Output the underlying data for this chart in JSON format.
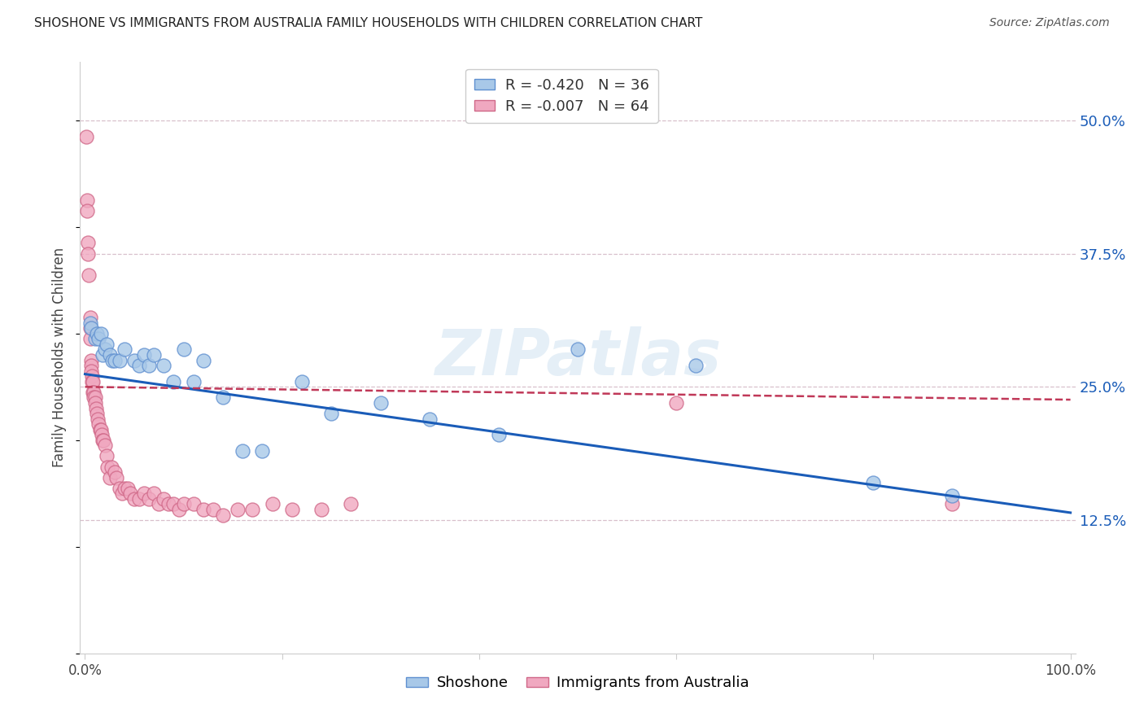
{
  "title": "SHOSHONE VS IMMIGRANTS FROM AUSTRALIA FAMILY HOUSEHOLDS WITH CHILDREN CORRELATION CHART",
  "source": "Source: ZipAtlas.com",
  "ylabel": "Family Households with Children",
  "xlim_min": -0.005,
  "xlim_max": 1.005,
  "ylim_min": 0.0,
  "ylim_max": 0.555,
  "yticks": [
    0.125,
    0.25,
    0.375,
    0.5
  ],
  "ytick_labels": [
    "12.5%",
    "25.0%",
    "37.5%",
    "50.0%"
  ],
  "xticks": [
    0.0,
    0.2,
    0.4,
    0.6,
    0.8,
    1.0
  ],
  "xtick_labels": [
    "0.0%",
    "",
    "",
    "",
    "",
    "100.0%"
  ],
  "legend_r1": "R = -0.420",
  "legend_n1": "N = 36",
  "legend_r2": "R = -0.007",
  "legend_n2": "N = 64",
  "shoshone_color": "#a8c8e8",
  "australia_color": "#f0a8c0",
  "shoshone_edge_color": "#6090d0",
  "australia_edge_color": "#d06888",
  "shoshone_line_color": "#1a5cb8",
  "australia_line_color": "#c03858",
  "background_color": "#ffffff",
  "grid_color": "#d8c0cc",
  "watermark": "ZIPatlas",
  "shoshone_x": [
    0.005,
    0.006,
    0.01,
    0.012,
    0.014,
    0.016,
    0.018,
    0.02,
    0.022,
    0.025,
    0.028,
    0.03,
    0.035,
    0.04,
    0.05,
    0.055,
    0.06,
    0.065,
    0.07,
    0.08,
    0.09,
    0.1,
    0.11,
    0.12,
    0.14,
    0.16,
    0.18,
    0.22,
    0.25,
    0.3,
    0.35,
    0.42,
    0.5,
    0.62,
    0.8,
    0.88
  ],
  "shoshone_y": [
    0.31,
    0.305,
    0.295,
    0.3,
    0.295,
    0.3,
    0.28,
    0.285,
    0.29,
    0.28,
    0.275,
    0.275,
    0.275,
    0.285,
    0.275,
    0.27,
    0.28,
    0.27,
    0.28,
    0.27,
    0.255,
    0.285,
    0.255,
    0.275,
    0.24,
    0.19,
    0.19,
    0.255,
    0.225,
    0.235,
    0.22,
    0.205,
    0.285,
    0.27,
    0.16,
    0.148
  ],
  "australia_x": [
    0.001,
    0.002,
    0.002,
    0.003,
    0.003,
    0.004,
    0.005,
    0.005,
    0.005,
    0.006,
    0.006,
    0.006,
    0.007,
    0.007,
    0.008,
    0.008,
    0.009,
    0.009,
    0.01,
    0.01,
    0.011,
    0.012,
    0.013,
    0.014,
    0.015,
    0.016,
    0.017,
    0.018,
    0.019,
    0.02,
    0.022,
    0.023,
    0.025,
    0.027,
    0.03,
    0.032,
    0.035,
    0.038,
    0.04,
    0.043,
    0.046,
    0.05,
    0.055,
    0.06,
    0.065,
    0.07,
    0.075,
    0.08,
    0.085,
    0.09,
    0.095,
    0.1,
    0.11,
    0.12,
    0.13,
    0.14,
    0.155,
    0.17,
    0.19,
    0.21,
    0.24,
    0.27,
    0.6,
    0.88
  ],
  "australia_y": [
    0.485,
    0.425,
    0.415,
    0.385,
    0.375,
    0.355,
    0.315,
    0.305,
    0.295,
    0.275,
    0.27,
    0.265,
    0.26,
    0.255,
    0.255,
    0.245,
    0.245,
    0.24,
    0.24,
    0.235,
    0.23,
    0.225,
    0.22,
    0.215,
    0.21,
    0.21,
    0.205,
    0.2,
    0.2,
    0.195,
    0.185,
    0.175,
    0.165,
    0.175,
    0.17,
    0.165,
    0.155,
    0.15,
    0.155,
    0.155,
    0.15,
    0.145,
    0.145,
    0.15,
    0.145,
    0.15,
    0.14,
    0.145,
    0.14,
    0.14,
    0.135,
    0.14,
    0.14,
    0.135,
    0.135,
    0.13,
    0.135,
    0.135,
    0.14,
    0.135,
    0.135,
    0.14,
    0.235,
    0.14
  ]
}
